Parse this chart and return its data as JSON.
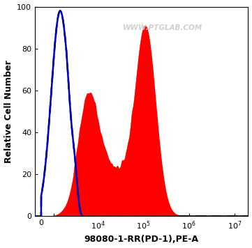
{
  "title": "",
  "xlabel": "98080-1-RR(PD-1),PE-A",
  "ylabel": "Relative Cell Number",
  "ylim": [
    0,
    100
  ],
  "yticks": [
    0,
    20,
    40,
    60,
    80,
    100
  ],
  "watermark": "WWW.PTGLAB.COM",
  "watermark_color": "#c8c8c8",
  "bg_color": "#ffffff",
  "plot_bg_color": "#ffffff",
  "blue_line_color": "#0000cc",
  "dashed_line_color": "#000000",
  "red_fill_color": "#ff0000",
  "xlabel_fontsize": 9,
  "ylabel_fontsize": 9,
  "xlabel_fontweight": "bold",
  "ylabel_fontweight": "bold",
  "tick_fontsize": 8,
  "linthresh": 2000,
  "linscale": 0.5
}
